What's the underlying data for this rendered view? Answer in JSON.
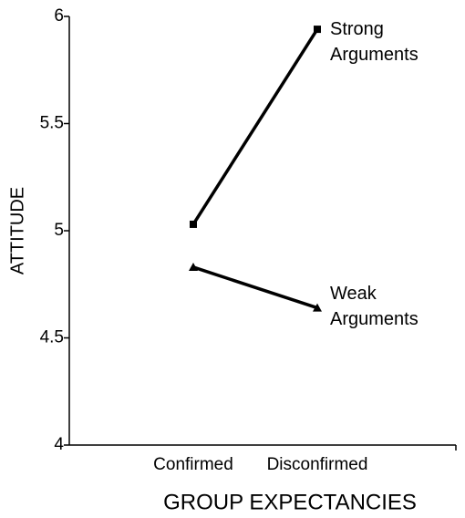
{
  "chart_data": {
    "type": "line",
    "x_label": "GROUP EXPECTANCIES",
    "y_label": "ATTITUDE",
    "categories": [
      "Confirmed",
      "Disconfirmed"
    ],
    "series": [
      {
        "name": "Strong Arguments",
        "color": "#000000",
        "marker": "square",
        "values": [
          5.03,
          5.94
        ]
      },
      {
        "name": "Weak Arguments",
        "color": "#000000",
        "marker": "triangle",
        "values": [
          4.83,
          4.64
        ]
      }
    ],
    "ylim": [
      4,
      6
    ],
    "yticks": [
      4,
      4.5,
      5,
      5.5,
      6
    ],
    "grid": false
  }
}
